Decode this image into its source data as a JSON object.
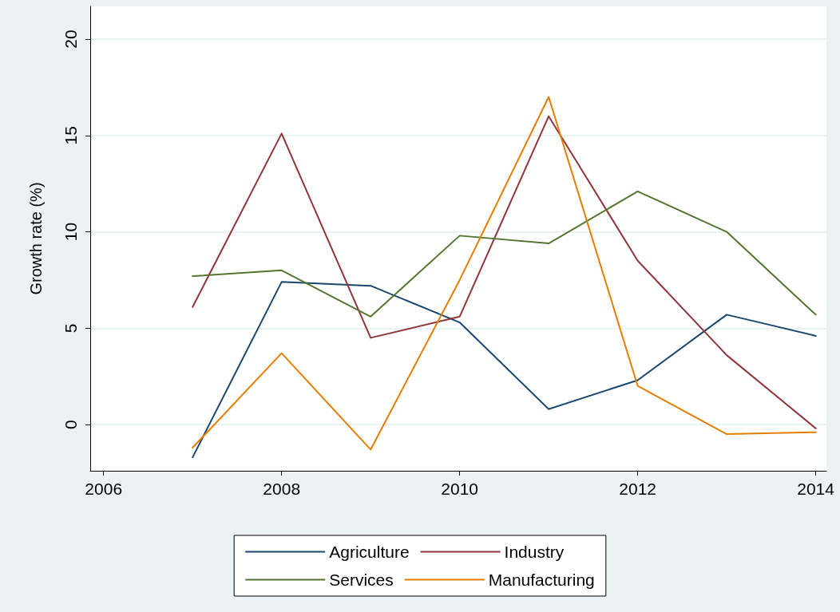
{
  "chart_data": {
    "type": "line",
    "ylabel": "Growth rate (%)",
    "x": [
      2007,
      2008,
      2009,
      2010,
      2011,
      2012,
      2013,
      2014
    ],
    "series": [
      {
        "name": "Agriculture",
        "color": "#1a476f",
        "values": [
          -1.7,
          7.4,
          7.2,
          5.3,
          0.8,
          2.3,
          5.7,
          4.6
        ]
      },
      {
        "name": "Industry",
        "color": "#90353b",
        "values": [
          6.1,
          15.1,
          4.5,
          5.6,
          16.0,
          8.5,
          3.6,
          -0.2
        ]
      },
      {
        "name": "Services",
        "color": "#55752f",
        "values": [
          7.7,
          8.0,
          5.6,
          9.8,
          9.4,
          12.1,
          10.0,
          5.7
        ]
      },
      {
        "name": "Manufacturing",
        "color": "#e37e00",
        "values": [
          -1.2,
          3.7,
          -1.3,
          7.5,
          17.0,
          2.0,
          -0.5,
          -0.4
        ]
      }
    ],
    "xlim": [
      2005.85,
      2014.12
    ],
    "xticks": [
      2006,
      2008,
      2010,
      2012,
      2014
    ],
    "ylim": [
      -2.4,
      21.7
    ],
    "yticks": [
      0,
      5,
      10,
      15,
      20
    ],
    "grid": "y",
    "legend": "bottom",
    "marker": "none",
    "line_style": "solid"
  }
}
